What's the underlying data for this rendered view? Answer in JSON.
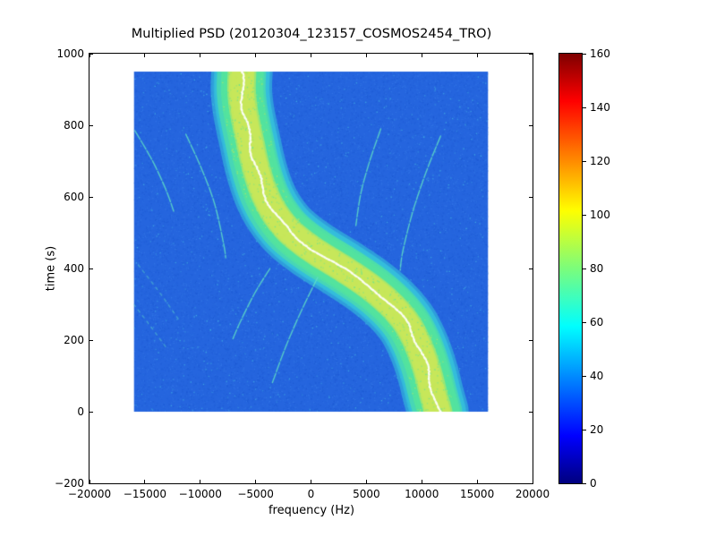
{
  "chart_data": {
    "type": "heatmap",
    "title": "Multiplied PSD (20120304_123157_COSMOS2454_TRO)",
    "xlabel": "frequency (Hz)",
    "ylabel": "time (s)",
    "xlim": [
      -20000,
      20000
    ],
    "ylim": [
      -200,
      1000
    ],
    "xticks": [
      -20000,
      -15000,
      -10000,
      -5000,
      0,
      5000,
      10000,
      15000,
      20000
    ],
    "xtick_labels": [
      "−20000",
      "−15000",
      "−10000",
      "−5000",
      "0",
      "5000",
      "10000",
      "15000",
      "20000"
    ],
    "yticks": [
      -200,
      0,
      200,
      400,
      600,
      800,
      1000
    ],
    "ytick_labels": [
      "−200",
      "0",
      "200",
      "400",
      "600",
      "800",
      "1000"
    ],
    "grid": false,
    "data_extent": {
      "xmin": -16000,
      "xmax": 16000,
      "ymin": 0,
      "ymax": 950
    },
    "background_level": 30,
    "colors": {
      "background_blue": "#2565de",
      "noise_shades": [
        "#1a55d0",
        "#1e5cd6",
        "#2e72e4",
        "#3a7fea",
        "#2a69de",
        "#49c4e4"
      ],
      "band_edge_cyan": "#35c3da",
      "band_green": "#55e49c",
      "band_core": "#c9e858",
      "band_center_white": "#ffffff",
      "faint_trace": "#5fdec6"
    },
    "doppler_band": {
      "description": "S-shaped Doppler trace of satellite pass, value ~100 at core over ~30 background",
      "centerline": [
        {
          "t": 950,
          "f": -6200
        },
        {
          "t": 900,
          "f": -6250
        },
        {
          "t": 850,
          "f": -6100
        },
        {
          "t": 800,
          "f": -5800
        },
        {
          "t": 750,
          "f": -5450
        },
        {
          "t": 700,
          "f": -5100
        },
        {
          "t": 650,
          "f": -4650
        },
        {
          "t": 600,
          "f": -4050
        },
        {
          "t": 550,
          "f": -3150
        },
        {
          "t": 500,
          "f": -1800
        },
        {
          "t": 450,
          "f": 300
        },
        {
          "t": 400,
          "f": 2900
        },
        {
          "t": 350,
          "f": 5300
        },
        {
          "t": 300,
          "f": 7200
        },
        {
          "t": 250,
          "f": 8600
        },
        {
          "t": 200,
          "f": 9500
        },
        {
          "t": 150,
          "f": 10150
        },
        {
          "t": 100,
          "f": 10650
        },
        {
          "t": 50,
          "f": 11050
        },
        {
          "t": 0,
          "f": 11500
        }
      ],
      "width_hz": {
        "outer": 5000,
        "mid": 3800,
        "core": 2300
      },
      "center_line_width_hz": 180
    },
    "faint_traces": [
      {
        "dashed": false,
        "points": [
          {
            "t": 785,
            "f": -15900
          },
          {
            "t": 700,
            "f": -14300
          },
          {
            "t": 620,
            "f": -13100
          },
          {
            "t": 560,
            "f": -12400
          }
        ]
      },
      {
        "dashed": false,
        "points": [
          {
            "t": 775,
            "f": -11300
          },
          {
            "t": 680,
            "f": -9900
          },
          {
            "t": 580,
            "f": -8700
          },
          {
            "t": 470,
            "f": -7900
          },
          {
            "t": 430,
            "f": -7700
          }
        ]
      },
      {
        "dashed": false,
        "points": [
          {
            "t": 790,
            "f": 6300
          },
          {
            "t": 700,
            "f": 5300
          },
          {
            "t": 610,
            "f": 4500
          },
          {
            "t": 520,
            "f": 4050
          }
        ]
      },
      {
        "dashed": false,
        "points": [
          {
            "t": 770,
            "f": 11700
          },
          {
            "t": 670,
            "f": 10400
          },
          {
            "t": 560,
            "f": 9200
          },
          {
            "t": 450,
            "f": 8300
          },
          {
            "t": 395,
            "f": 8050
          }
        ]
      },
      {
        "dashed": false,
        "points": [
          {
            "t": 375,
            "f": 600
          },
          {
            "t": 280,
            "f": -900
          },
          {
            "t": 180,
            "f": -2300
          },
          {
            "t": 80,
            "f": -3500
          }
        ]
      },
      {
        "dashed": false,
        "points": [
          {
            "t": 400,
            "f": -3700
          },
          {
            "t": 330,
            "f": -5100
          },
          {
            "t": 250,
            "f": -6400
          },
          {
            "t": 200,
            "f": -7100
          }
        ]
      },
      {
        "dashed": true,
        "points": [
          {
            "t": 410,
            "f": -15600
          },
          {
            "t": 330,
            "f": -13600
          },
          {
            "t": 255,
            "f": -11900
          }
        ]
      },
      {
        "dashed": true,
        "points": [
          {
            "t": 300,
            "f": -16000
          },
          {
            "t": 235,
            "f": -14400
          },
          {
            "t": 180,
            "f": -13100
          }
        ]
      }
    ],
    "colorbar": {
      "min": 0,
      "max": 160,
      "ticks": [
        0,
        20,
        40,
        60,
        80,
        100,
        120,
        140,
        160
      ],
      "tick_labels": [
        "0",
        "20",
        "40",
        "60",
        "80",
        "100",
        "120",
        "140",
        "160"
      ],
      "colormap": "jet",
      "jet_stops": [
        {
          "pos": 0.0,
          "color": "#00007f"
        },
        {
          "pos": 0.11,
          "color": "#0000ff"
        },
        {
          "pos": 0.365,
          "color": "#00ffff"
        },
        {
          "pos": 0.5,
          "color": "#7cfd7c"
        },
        {
          "pos": 0.635,
          "color": "#ffff00"
        },
        {
          "pos": 0.89,
          "color": "#ff0000"
        },
        {
          "pos": 1.0,
          "color": "#7f0000"
        }
      ]
    }
  }
}
